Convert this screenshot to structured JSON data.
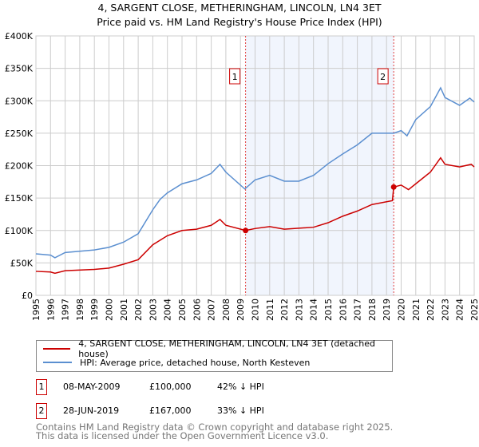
{
  "chart_data": {
    "type": "line",
    "title": "4, SARGENT CLOSE, METHERINGHAM, LINCOLN, LN4 3ET",
    "subtitle": "Price paid vs. HM Land Registry's House Price Index (HPI)",
    "xlim": [
      1995,
      2025
    ],
    "ylim": [
      0,
      400000
    ],
    "yticks": [
      0,
      50000,
      100000,
      150000,
      200000,
      250000,
      300000,
      350000,
      400000
    ],
    "ytick_labels": [
      "£0",
      "£50K",
      "£100K",
      "£150K",
      "£200K",
      "£250K",
      "£300K",
      "£350K",
      "£400K"
    ],
    "xticks": [
      "1995",
      "1996",
      "1997",
      "1998",
      "1999",
      "2000",
      "2001",
      "2002",
      "2003",
      "2004",
      "2005",
      "2006",
      "2007",
      "2008",
      "2009",
      "2010",
      "2011",
      "2012",
      "2013",
      "2014",
      "2015",
      "2016",
      "2017",
      "2018",
      "2019",
      "2020",
      "2021",
      "2022",
      "2023",
      "2024",
      "2025"
    ],
    "grid": true,
    "shaded_range": [
      2009.35,
      2019.49
    ],
    "series": [
      {
        "name": "4, SARGENT CLOSE, METHERINGHAM, LINCOLN, LN4 3ET (detached house)",
        "color": "#cc0000",
        "x": [
          1995,
          1996,
          1996.3,
          1997,
          1999,
          2000,
          2001,
          2002,
          2003,
          2004,
          2005,
          2006,
          2007,
          2007.6,
          2008,
          2009.35,
          2010,
          2011,
          2012,
          2014,
          2015,
          2016,
          2017,
          2018,
          2019.4,
          2019.49,
          2020,
          2020.5,
          2021,
          2022,
          2022.7,
          2023,
          2024,
          2024.8,
          2025
        ],
        "y": [
          37000,
          36000,
          34000,
          38000,
          40000,
          42000,
          48000,
          55000,
          78000,
          92000,
          100000,
          102000,
          108000,
          117000,
          108000,
          100000,
          103000,
          106000,
          102000,
          105000,
          112000,
          122000,
          130000,
          140000,
          146000,
          167000,
          170000,
          163000,
          172000,
          190000,
          212000,
          202000,
          198000,
          202000,
          198000
        ]
      },
      {
        "name": "HPI: Average price, detached house, North Kesteven",
        "color": "#5b8fd0",
        "x": [
          1995,
          1996,
          1996.3,
          1997,
          1998,
          1999,
          2000,
          2001,
          2002,
          2003,
          2003.5,
          2004,
          2005,
          2006,
          2007,
          2007.6,
          2008,
          2009.3,
          2010,
          2011,
          2012,
          2013,
          2014,
          2015,
          2016,
          2017,
          2018,
          2019.5,
          2020,
          2020.4,
          2021,
          2022,
          2022.7,
          2023,
          2024,
          2024.7,
          2025
        ],
        "y": [
          64000,
          62000,
          58000,
          66000,
          68000,
          70000,
          74000,
          82000,
          95000,
          132000,
          148000,
          158000,
          172000,
          178000,
          188000,
          202000,
          190000,
          164000,
          178000,
          185000,
          176000,
          176000,
          185000,
          203000,
          218000,
          232000,
          250000,
          250000,
          254000,
          246000,
          271000,
          291000,
          320000,
          305000,
          293000,
          304000,
          298000
        ]
      }
    ],
    "sales": [
      {
        "label": "1",
        "x": 2009.35,
        "y": 100000
      },
      {
        "label": "2",
        "x": 2019.49,
        "y": 167000
      }
    ]
  },
  "legend": [
    {
      "label": "4, SARGENT CLOSE, METHERINGHAM, LINCOLN, LN4 3ET (detached house)"
    },
    {
      "label": "HPI: Average price, detached house, North Kesteven"
    }
  ],
  "transactions": [
    {
      "num": "1",
      "date": "08-MAY-2009",
      "price": "£100,000",
      "hpi": "42% ↓ HPI"
    },
    {
      "num": "2",
      "date": "28-JUN-2019",
      "price": "£167,000",
      "hpi": "33% ↓ HPI"
    }
  ],
  "footer": {
    "line1": "Contains HM Land Registry data © Crown copyright and database right 2025.",
    "line2": "This data is licensed under the Open Government Licence v3.0."
  }
}
